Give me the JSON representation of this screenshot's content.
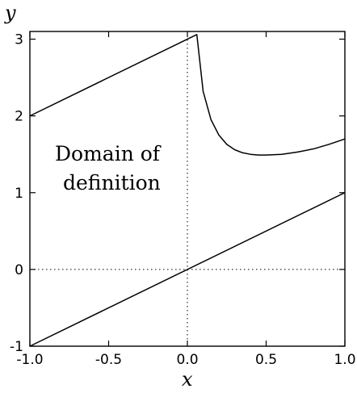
{
  "chart_data": {
    "type": "line",
    "xlabel": "x",
    "ylabel": "y",
    "xlim": [
      -1.0,
      1.0
    ],
    "ylim": [
      -1,
      3.1
    ],
    "x_ticks": [
      -1.0,
      -0.5,
      0.0,
      0.5,
      1.0
    ],
    "x_tick_labels": [
      "-1.0",
      "-0.5",
      "0.0",
      "0.5",
      "1.0"
    ],
    "y_ticks": [
      -1,
      0,
      1,
      2,
      3
    ],
    "y_tick_labels": [
      "-1",
      "0",
      "1",
      "2",
      "3"
    ],
    "reference_lines": {
      "x": 0,
      "y": 0,
      "style": "dotted"
    },
    "annotation": [
      "Domain of",
      "definition"
    ],
    "series": [
      {
        "values": [
          [
            -1.0,
            -1.0
          ],
          [
            1.0,
            1.0
          ]
        ]
      },
      {
        "values": [
          [
            -1.0,
            2.0
          ],
          [
            0.06,
            3.06
          ],
          [
            0.1,
            2.32
          ],
          [
            0.15,
            1.95
          ],
          [
            0.2,
            1.75
          ],
          [
            0.25,
            1.63
          ],
          [
            0.3,
            1.56
          ],
          [
            0.35,
            1.52
          ],
          [
            0.4,
            1.5
          ],
          [
            0.45,
            1.49
          ],
          [
            0.5,
            1.49
          ],
          [
            0.6,
            1.5
          ],
          [
            0.7,
            1.53
          ],
          [
            0.8,
            1.57
          ],
          [
            0.9,
            1.63
          ],
          [
            1.0,
            1.7
          ]
        ]
      }
    ]
  }
}
